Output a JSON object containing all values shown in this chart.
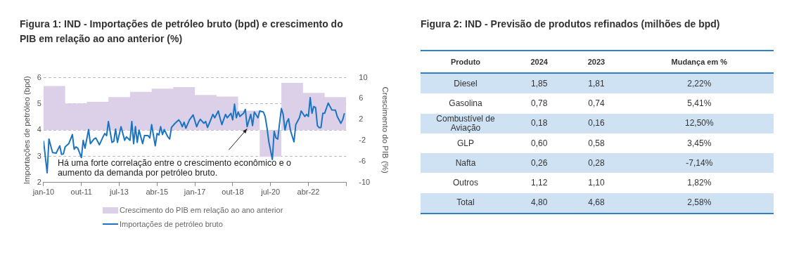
{
  "chart_data": [
    {
      "type": "line",
      "title": "Figura 1: IND - Importações de petróleo bruto (bpd) e crescimento do PIB em relação ao ano anterior (%)",
      "ylabel": "Importações de petróleo (bpd)",
      "y2label": "Crescimento do PIB (%)",
      "xlim": [
        "2010-01",
        "2024-01"
      ],
      "xticks": [
        {
          "value": "2010-01",
          "label": "jan-10"
        },
        {
          "value": "2011-10",
          "label": "out-11"
        },
        {
          "value": "2013-07",
          "label": "jul-13"
        },
        {
          "value": "2015-04",
          "label": "abr-15"
        },
        {
          "value": "2017-01",
          "label": "jan-17"
        },
        {
          "value": "2018-10",
          "label": "out-18"
        },
        {
          "value": "2020-07",
          "label": "jul-20"
        },
        {
          "value": "2022-04",
          "label": "abr-22"
        },
        {
          "value": "2024-01",
          "label": null
        }
      ],
      "ylim": [
        2,
        6
      ],
      "yticks": [
        2,
        3,
        4,
        5,
        6
      ],
      "y2lim": [
        -10,
        10
      ],
      "y2ticks": [
        10,
        6,
        2,
        -2,
        -6,
        -10
      ],
      "grid": "y",
      "legend": "bottom",
      "annotations": [
        {
          "text": "Há uma forte correlação entre o crescimento econômico e o aumento da demanda por petróleo bruto.",
          "x": "2019-06",
          "y": 4.05
        }
      ],
      "series": [
        {
          "name": "Crescimento do PIB em relação ao ano anterior",
          "type": "area",
          "axis": "y2",
          "color": "#dcd0e9",
          "x": [
            "2010-01",
            "2011-01",
            "2011-01",
            "2012-01",
            "2012-01",
            "2013-01",
            "2013-01",
            "2014-01",
            "2014-01",
            "2015-01",
            "2015-01",
            "2016-01",
            "2016-01",
            "2017-01",
            "2017-01",
            "2018-01",
            "2018-01",
            "2019-01",
            "2019-01",
            "2020-01",
            "2020-01",
            "2021-01",
            "2021-01",
            "2022-01",
            "2022-01",
            "2023-01",
            "2023-01",
            "2024-01"
          ],
          "values": [
            8.4,
            8.4,
            5.1,
            5.1,
            5.4,
            5.4,
            6.3,
            6.3,
            7.3,
            7.3,
            7.9,
            7.9,
            8.2,
            8.2,
            6.7,
            6.7,
            6.4,
            6.4,
            3.7,
            3.7,
            -5.1,
            -5.1,
            9.0,
            9.0,
            7.1,
            7.1,
            6.3,
            6.3
          ]
        },
        {
          "name": "Importações de petróleo bruto",
          "type": "line",
          "axis": "y",
          "color": "#1a74c2",
          "x": [
            "2010-01",
            "2010-03",
            "2010-04",
            "2010-06",
            "2010-08",
            "2010-10",
            "2010-11",
            "2010-12",
            "2011-01",
            "2011-03",
            "2011-05",
            "2011-06",
            "2011-07",
            "2011-08",
            "2011-10",
            "2011-11",
            "2011-12",
            "2012-02",
            "2012-03",
            "2012-05",
            "2012-06",
            "2012-08",
            "2012-10",
            "2012-11",
            "2012-12",
            "2013-01",
            "2013-03",
            "2013-04",
            "2013-05",
            "2013-06",
            "2013-08",
            "2013-10",
            "2013-11",
            "2014-01",
            "2014-02",
            "2014-03",
            "2014-04",
            "2014-05",
            "2014-06",
            "2014-08",
            "2014-09",
            "2014-11",
            "2014-12",
            "2015-01",
            "2015-03",
            "2015-04",
            "2015-05",
            "2015-06",
            "2015-07",
            "2015-08",
            "2015-10",
            "2015-11",
            "2015-12",
            "2016-02",
            "2016-04",
            "2016-05",
            "2016-06",
            "2016-07",
            "2016-08",
            "2016-10",
            "2016-12",
            "2017-02",
            "2017-03",
            "2017-04",
            "2017-06",
            "2017-07",
            "2017-08",
            "2017-09",
            "2017-11",
            "2017-12",
            "2018-02",
            "2018-03",
            "2018-04",
            "2018-06",
            "2018-07",
            "2018-09",
            "2018-10",
            "2018-11",
            "2018-12",
            "2019-01",
            "2019-02",
            "2019-04",
            "2019-05",
            "2019-06",
            "2019-08",
            "2019-09",
            "2019-10",
            "2019-12",
            "2020-01",
            "2020-03",
            "2020-04",
            "2020-05",
            "2020-06",
            "2020-08",
            "2020-09",
            "2020-10",
            "2020-11",
            "2020-12",
            "2021-01",
            "2021-02",
            "2021-03",
            "2021-04",
            "2021-05",
            "2021-06",
            "2021-08",
            "2021-09",
            "2021-10",
            "2021-11",
            "2021-12",
            "2022-02",
            "2022-03",
            "2022-04",
            "2022-05",
            "2022-06",
            "2022-07",
            "2022-08",
            "2022-09",
            "2022-10",
            "2022-11",
            "2022-12",
            "2023-01",
            "2023-03",
            "2023-04",
            "2023-05",
            "2023-07",
            "2023-08",
            "2023-10",
            "2023-11",
            "2023-12"
          ],
          "values": [
            3.59,
            2.37,
            3.66,
            3.14,
            3.12,
            3.4,
            3.07,
            3.09,
            3.36,
            3.48,
            3.83,
            3.27,
            3.36,
            3.31,
            2.95,
            3.61,
            3.31,
            4.02,
            3.48,
            3.66,
            3.7,
            3.44,
            3.74,
            3.87,
            3.79,
            4.33,
            3.53,
            3.57,
            4.04,
            3.53,
            4.13,
            3.61,
            3.74,
            3.61,
            4.33,
            3.48,
            4.13,
            3.53,
            4.0,
            3.48,
            3.79,
            3.79,
            3.7,
            4.21,
            3.4,
            3.87,
            3.81,
            4.13,
            3.83,
            4.02,
            3.74,
            3.66,
            4.1,
            4.26,
            4.39,
            4.3,
            4.13,
            4.3,
            4.07,
            4.39,
            4.58,
            4.13,
            4.3,
            4.41,
            4.26,
            4.33,
            4.1,
            4.26,
            4.6,
            4.47,
            4.73,
            4.45,
            4.21,
            4.6,
            4.47,
            4.64,
            4.39,
            4.99,
            4.47,
            4.69,
            4.52,
            4.64,
            4.79,
            4.13,
            4.6,
            4.17,
            4.69,
            4.47,
            4.73,
            4.69,
            4.52,
            4.1,
            3.57,
            2.88,
            3.96,
            3.7,
            3.66,
            4.26,
            4.82,
            4.6,
            4.0,
            4.3,
            4.43,
            4.0,
            3.55,
            4.21,
            4.34,
            4.47,
            4.73,
            4.52,
            4.6,
            4.52,
            5.24,
            4.64,
            4.9,
            4.86,
            4.17,
            4.09,
            4.1,
            4.64,
            4.64,
            5.03,
            4.9,
            4.77,
            4.76,
            4.52,
            4.26,
            4.39,
            4.64
          ]
        }
      ]
    },
    {
      "type": "heatmap",
      "title": "Figura 2: IND - Previsão de produtos refinados (milhões de bpd)",
      "ylabel": "Produto",
      "categories": [
        "2024",
        "2023",
        "Mudança em %"
      ],
      "y_categories": [
        "Diesel",
        "Gasolina",
        "Combustível de Aviação",
        "GLP",
        "Nafta",
        "Outros",
        "Total"
      ],
      "cells": [
        [
          1.85,
          1.81,
          2.22
        ],
        [
          0.78,
          0.74,
          5.41
        ],
        [
          0.18,
          0.16,
          12.5
        ],
        [
          0.6,
          0.58,
          3.45
        ],
        [
          0.26,
          0.28,
          -7.14
        ],
        [
          1.12,
          1.1,
          1.82
        ],
        [
          4.8,
          4.68,
          2.58
        ]
      ],
      "cell_labels": [
        [
          "1,85",
          "1,81",
          "2,22%"
        ],
        [
          "0,78",
          "0,74",
          "5,41%"
        ],
        [
          "0,18",
          "0,16",
          "12,50%"
        ],
        [
          "0,60",
          "0,58",
          "3,45%"
        ],
        [
          "0,26",
          "0,28",
          "-7,14%"
        ],
        [
          "1,12",
          "1,10",
          "1,82%"
        ],
        [
          "4,80",
          "4,68",
          "2,58%"
        ]
      ]
    }
  ]
}
